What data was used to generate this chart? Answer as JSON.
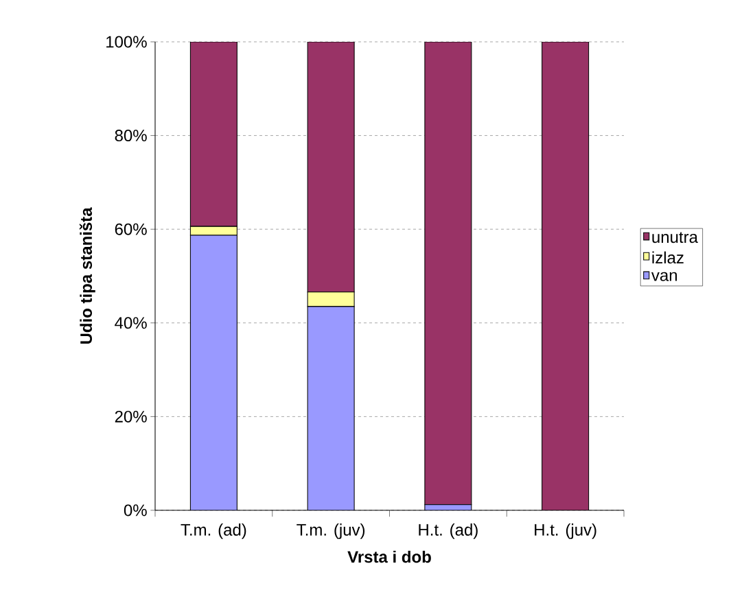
{
  "chart_data": {
    "type": "bar",
    "stacked": true,
    "xlabel": "Vrsta i dob",
    "ylabel": "Udio tipa staništa",
    "categories": [
      "T.m. (ad)",
      "T.m. (juv)",
      "H.t. (ad)",
      "H.t. (juv)"
    ],
    "series": [
      {
        "name": "van",
        "color": "#9999ff",
        "values": [
          58.7,
          43.5,
          1.2,
          0
        ]
      },
      {
        "name": "izlaz",
        "color": "#ffff99",
        "values": [
          1.9,
          3.1,
          0,
          0
        ]
      },
      {
        "name": "unutra",
        "color": "#993366",
        "values": [
          39.4,
          53.4,
          98.8,
          100
        ]
      }
    ],
    "ylim": [
      0,
      100
    ],
    "yticks": [
      {
        "value": 0,
        "label": "0%"
      },
      {
        "value": 20,
        "label": "20%"
      },
      {
        "value": 40,
        "label": "40%"
      },
      {
        "value": 60,
        "label": "60%"
      },
      {
        "value": 80,
        "label": "80%"
      },
      {
        "value": 100,
        "label": "100%"
      }
    ],
    "grid": "y",
    "legend": "right"
  }
}
